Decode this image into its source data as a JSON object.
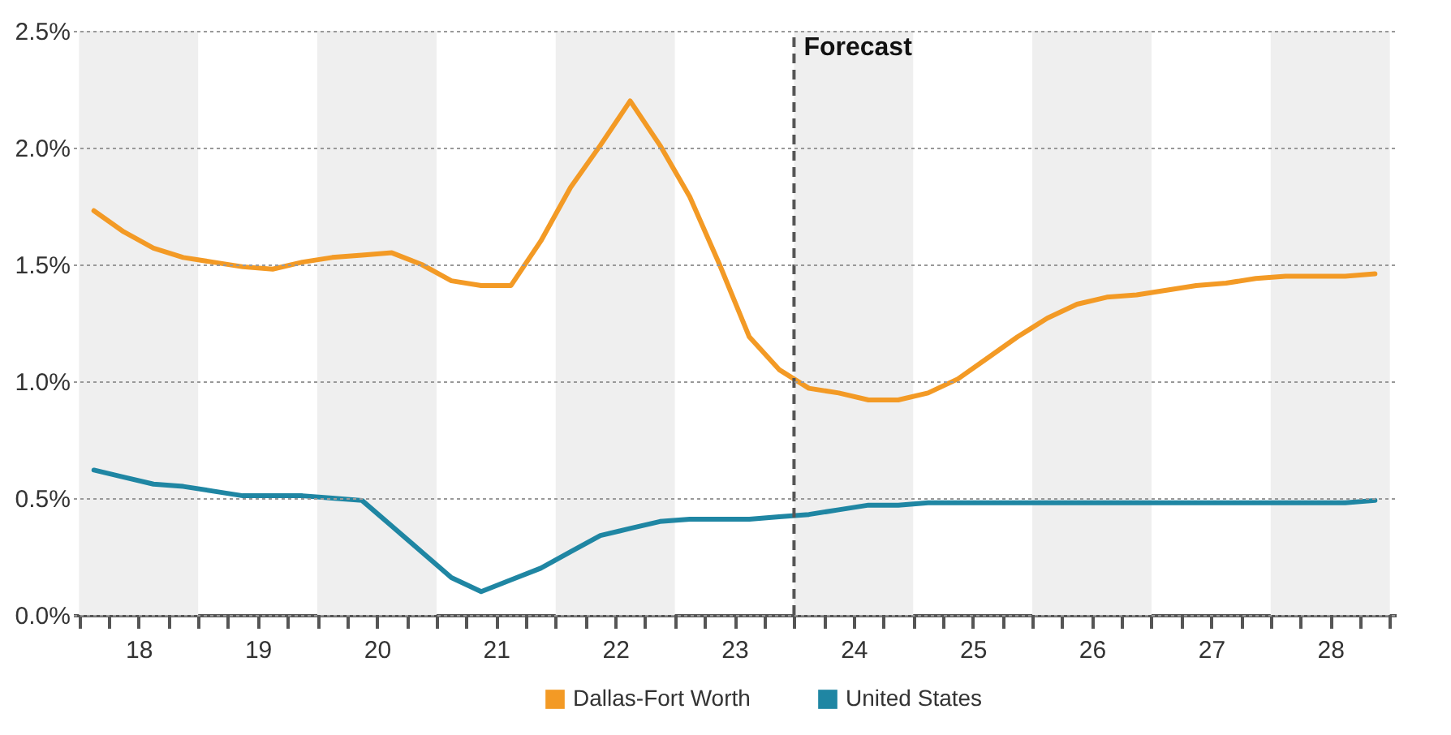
{
  "chart_data": {
    "type": "line",
    "x": [
      18.125,
      18.375,
      18.625,
      18.875,
      19.125,
      19.375,
      19.625,
      19.875,
      20.125,
      20.375,
      20.625,
      20.875,
      21.125,
      21.375,
      21.625,
      21.875,
      22.125,
      22.375,
      22.625,
      22.875,
      23.125,
      23.375,
      23.625,
      23.875,
      24.125,
      24.375,
      24.625,
      24.875,
      25.125,
      25.375,
      25.625,
      25.875,
      26.125,
      26.375,
      26.625,
      26.875,
      27.125,
      27.375,
      27.625,
      27.875,
      28.125,
      28.375,
      28.625,
      28.875
    ],
    "series": [
      {
        "name": "Dallas-Fort Worth",
        "color": "#f39a25",
        "values": [
          1.73,
          1.64,
          1.57,
          1.53,
          1.51,
          1.49,
          1.48,
          1.51,
          1.53,
          1.54,
          1.55,
          1.5,
          1.43,
          1.41,
          1.41,
          1.6,
          1.83,
          2.01,
          2.2,
          2.01,
          1.79,
          1.5,
          1.19,
          1.05,
          0.97,
          0.95,
          0.92,
          0.92,
          0.95,
          1.01,
          1.1,
          1.19,
          1.27,
          1.33,
          1.36,
          1.37,
          1.39,
          1.41,
          1.42,
          1.44,
          1.45,
          1.45,
          1.45,
          1.46
        ]
      },
      {
        "name": "United States",
        "color": "#1f86a3",
        "values": [
          0.62,
          0.59,
          0.56,
          0.55,
          0.53,
          0.51,
          0.51,
          0.51,
          0.5,
          0.49,
          0.38,
          0.27,
          0.16,
          0.1,
          0.15,
          0.2,
          0.27,
          0.34,
          0.37,
          0.4,
          0.41,
          0.41,
          0.41,
          0.42,
          0.43,
          0.45,
          0.47,
          0.47,
          0.48,
          0.48,
          0.48,
          0.48,
          0.48,
          0.48,
          0.48,
          0.48,
          0.48,
          0.48,
          0.48,
          0.48,
          0.48,
          0.48,
          0.48,
          0.49
        ]
      }
    ],
    "xlim": [
      17.95,
      29.05
    ],
    "xticks": [
      {
        "value": 18,
        "label": null
      },
      {
        "value": 18.25,
        "label": null
      },
      {
        "value": 18.5,
        "label": "18"
      },
      {
        "value": 18.75,
        "label": null
      },
      {
        "value": 19,
        "label": null
      },
      {
        "value": 19.25,
        "label": null
      },
      {
        "value": 19.5,
        "label": "19"
      },
      {
        "value": 19.75,
        "label": null
      },
      {
        "value": 20,
        "label": null
      },
      {
        "value": 20.25,
        "label": null
      },
      {
        "value": 20.5,
        "label": "20"
      },
      {
        "value": 20.75,
        "label": null
      },
      {
        "value": 21,
        "label": null
      },
      {
        "value": 21.25,
        "label": null
      },
      {
        "value": 21.5,
        "label": "21"
      },
      {
        "value": 21.75,
        "label": null
      },
      {
        "value": 22,
        "label": null
      },
      {
        "value": 22.25,
        "label": null
      },
      {
        "value": 22.5,
        "label": "22"
      },
      {
        "value": 22.75,
        "label": null
      },
      {
        "value": 23,
        "label": null
      },
      {
        "value": 23.25,
        "label": null
      },
      {
        "value": 23.5,
        "label": "23"
      },
      {
        "value": 23.75,
        "label": null
      },
      {
        "value": 24,
        "label": null
      },
      {
        "value": 24.25,
        "label": null
      },
      {
        "value": 24.5,
        "label": "24"
      },
      {
        "value": 24.75,
        "label": null
      },
      {
        "value": 25,
        "label": null
      },
      {
        "value": 25.25,
        "label": null
      },
      {
        "value": 25.5,
        "label": "25"
      },
      {
        "value": 25.75,
        "label": null
      },
      {
        "value": 26,
        "label": null
      },
      {
        "value": 26.25,
        "label": null
      },
      {
        "value": 26.5,
        "label": "26"
      },
      {
        "value": 26.75,
        "label": null
      },
      {
        "value": 27,
        "label": null
      },
      {
        "value": 27.25,
        "label": null
      },
      {
        "value": 27.5,
        "label": "27"
      },
      {
        "value": 27.75,
        "label": null
      },
      {
        "value": 28,
        "label": null
      },
      {
        "value": 28.25,
        "label": null
      },
      {
        "value": 28.5,
        "label": "28"
      },
      {
        "value": 28.75,
        "label": null
      },
      {
        "value": 29,
        "label": null
      }
    ],
    "ylim": [
      0,
      2.5
    ],
    "yticks": [
      {
        "value": 0,
        "label": "0.0%"
      },
      {
        "value": 0.5,
        "label": "0.5%"
      },
      {
        "value": 1,
        "label": "1.0%"
      },
      {
        "value": 1.5,
        "label": "1.5%"
      },
      {
        "value": 2,
        "label": "2.0%"
      },
      {
        "value": 2.5,
        "label": "2.5%"
      }
    ],
    "grid": "y",
    "legend": "bottom",
    "bands": [
      {
        "axis": "x",
        "from": 18,
        "to": 19,
        "color": "#efefef"
      },
      {
        "axis": "x",
        "from": 20,
        "to": 21,
        "color": "#efefef"
      },
      {
        "axis": "x",
        "from": 22,
        "to": 23,
        "color": "#efefef"
      },
      {
        "axis": "x",
        "from": 24,
        "to": 25,
        "color": "#efefef"
      },
      {
        "axis": "x",
        "from": 26,
        "to": 27,
        "color": "#efefef"
      },
      {
        "axis": "x",
        "from": 28,
        "to": 29,
        "color": "#efefef"
      }
    ],
    "ref_lines": [
      {
        "axis": "x",
        "value": 24,
        "label": "Forecast",
        "line_style": "dashed",
        "color": "#555555"
      }
    ]
  }
}
